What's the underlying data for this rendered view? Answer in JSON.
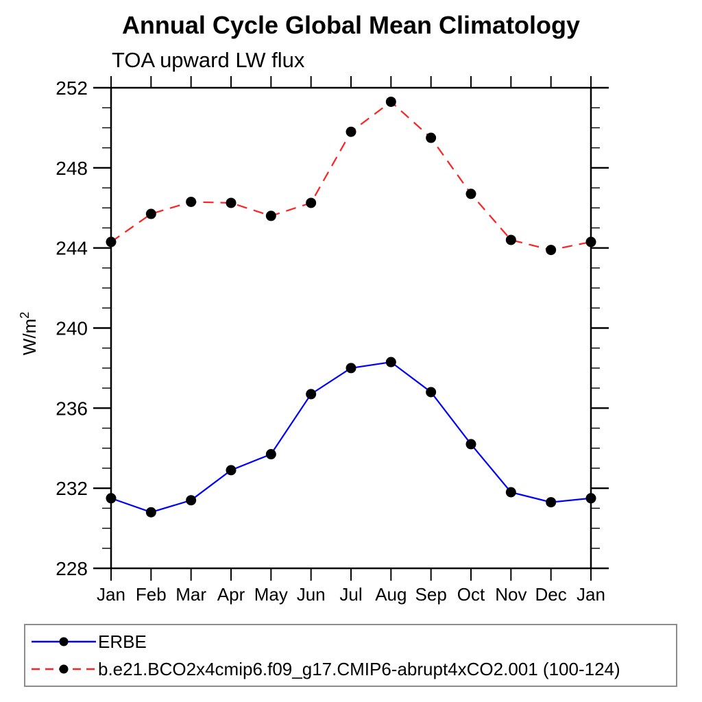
{
  "accent_colors": {
    "erbe_line": "#0000ff",
    "model_line": "#ff2020",
    "marker": "#000000",
    "axis": "#000000",
    "legend_border": "#8c8c8c"
  },
  "chart_data": {
    "type": "line",
    "title": "Annual Cycle Global Mean Climatology",
    "subtitle": "TOA upward LW flux",
    "ylabel": {
      "base": "W/m",
      "sup": "2"
    },
    "xlabel": "",
    "categories": [
      "Jan",
      "Feb",
      "Mar",
      "Apr",
      "May",
      "Jun",
      "Jul",
      "Aug",
      "Sep",
      "Oct",
      "Nov",
      "Dec",
      "Jan"
    ],
    "ylim": [
      228,
      252
    ],
    "ytick_major": [
      228,
      232,
      236,
      240,
      244,
      248,
      252
    ],
    "ytick_minor_step": 1,
    "grid": false,
    "legend_position": "bottom-left-box",
    "series": [
      {
        "name": "ERBE",
        "color": "#0000ff",
        "style": "solid",
        "marker": "circle",
        "marker_color": "#000000",
        "values": [
          231.5,
          230.8,
          231.4,
          232.9,
          233.7,
          236.7,
          238.0,
          238.3,
          236.8,
          234.2,
          231.8,
          231.3,
          231.5
        ]
      },
      {
        "name": "b.e21.BCO2x4cmip6.f09_g17.CMIP6-abrupt4xCO2.001 (100-124)",
        "color": "#ff2020",
        "style": "dashed",
        "marker": "circle",
        "marker_color": "#000000",
        "values": [
          244.3,
          245.7,
          246.3,
          246.25,
          245.6,
          246.25,
          249.8,
          251.3,
          249.5,
          246.7,
          244.4,
          243.9,
          244.3
        ]
      }
    ]
  }
}
